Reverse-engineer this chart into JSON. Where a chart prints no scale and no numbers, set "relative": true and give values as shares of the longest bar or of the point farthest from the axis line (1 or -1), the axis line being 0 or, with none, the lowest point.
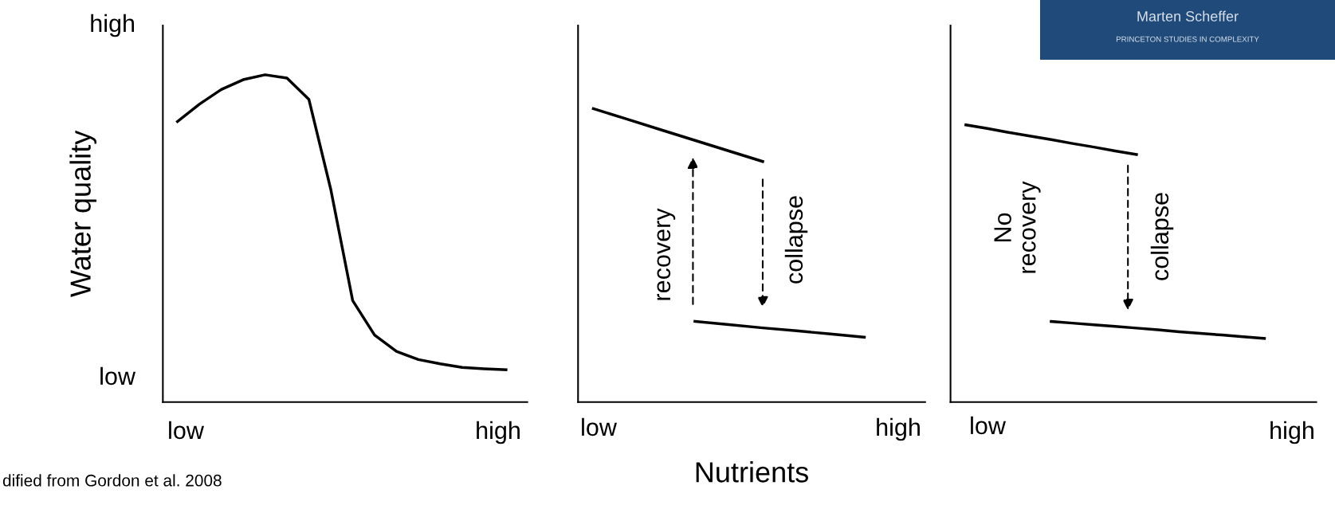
{
  "chart_data": [
    {
      "type": "line",
      "ylabel": "Water quality",
      "relative": true,
      "line_style": "solid",
      "categories": [
        null,
        null,
        null,
        null,
        null,
        null,
        null,
        null,
        null,
        null,
        null,
        null,
        null,
        null,
        null,
        null
      ],
      "series": [
        {
          "color": "#000000",
          "values": [
            0.857,
            0.91,
            0.955,
            0.985,
            1,
            0.99,
            0.925,
            0.65,
            0.31,
            0.205,
            0.155,
            0.13,
            0.117,
            0.106,
            0.102,
            0.099
          ]
        }
      ],
      "annotations": [
        "low",
        "high",
        "low",
        "high",
        "dified from Gordon et al. 2008"
      ]
    },
    {
      "type": "line",
      "xlabel": "Nutrients",
      "relative": true,
      "line_style": "solid",
      "categories": [
        null,
        null,
        null,
        null,
        null,
        null,
        null,
        null,
        null
      ],
      "series": [
        {
          "color": "#000000",
          "values": [
            1,
            0.964,
            0.928,
            0.892,
            0.856,
            0.82,
            null,
            null,
            null
          ]
        },
        {
          "color": "#000000",
          "values": [
            null,
            null,
            null,
            0.275,
            0.264,
            0.253,
            0.243,
            0.232,
            0.221
          ]
        }
      ],
      "annotations": [
        "recovery",
        "collapse",
        "low",
        "high"
      ]
    },
    {
      "type": "line",
      "relative": true,
      "line_style": "solid",
      "categories": [
        null,
        null,
        null,
        null,
        null,
        null,
        null,
        null,
        null,
        null,
        null,
        null,
        null,
        null,
        null
      ],
      "series": [
        {
          "color": "#000000",
          "values": [
            1,
            0.987,
            0.973,
            0.96,
            0.947,
            0.933,
            0.92,
            0.906,
            0.893,
            null,
            null,
            null,
            null,
            null,
            null
          ]
        },
        {
          "color": "#000000",
          "values": [
            null,
            null,
            null,
            null,
            0.291,
            0.285,
            0.279,
            0.273,
            0.267,
            0.261,
            0.254,
            0.248,
            0.242,
            0.236,
            0.23
          ]
        }
      ],
      "annotations": [
        "No\nrecovery",
        "collapse",
        "low",
        "high",
        "Marten Scheffer",
        "PRINCETON STUDIES IN COMPLEXITY"
      ]
    }
  ]
}
